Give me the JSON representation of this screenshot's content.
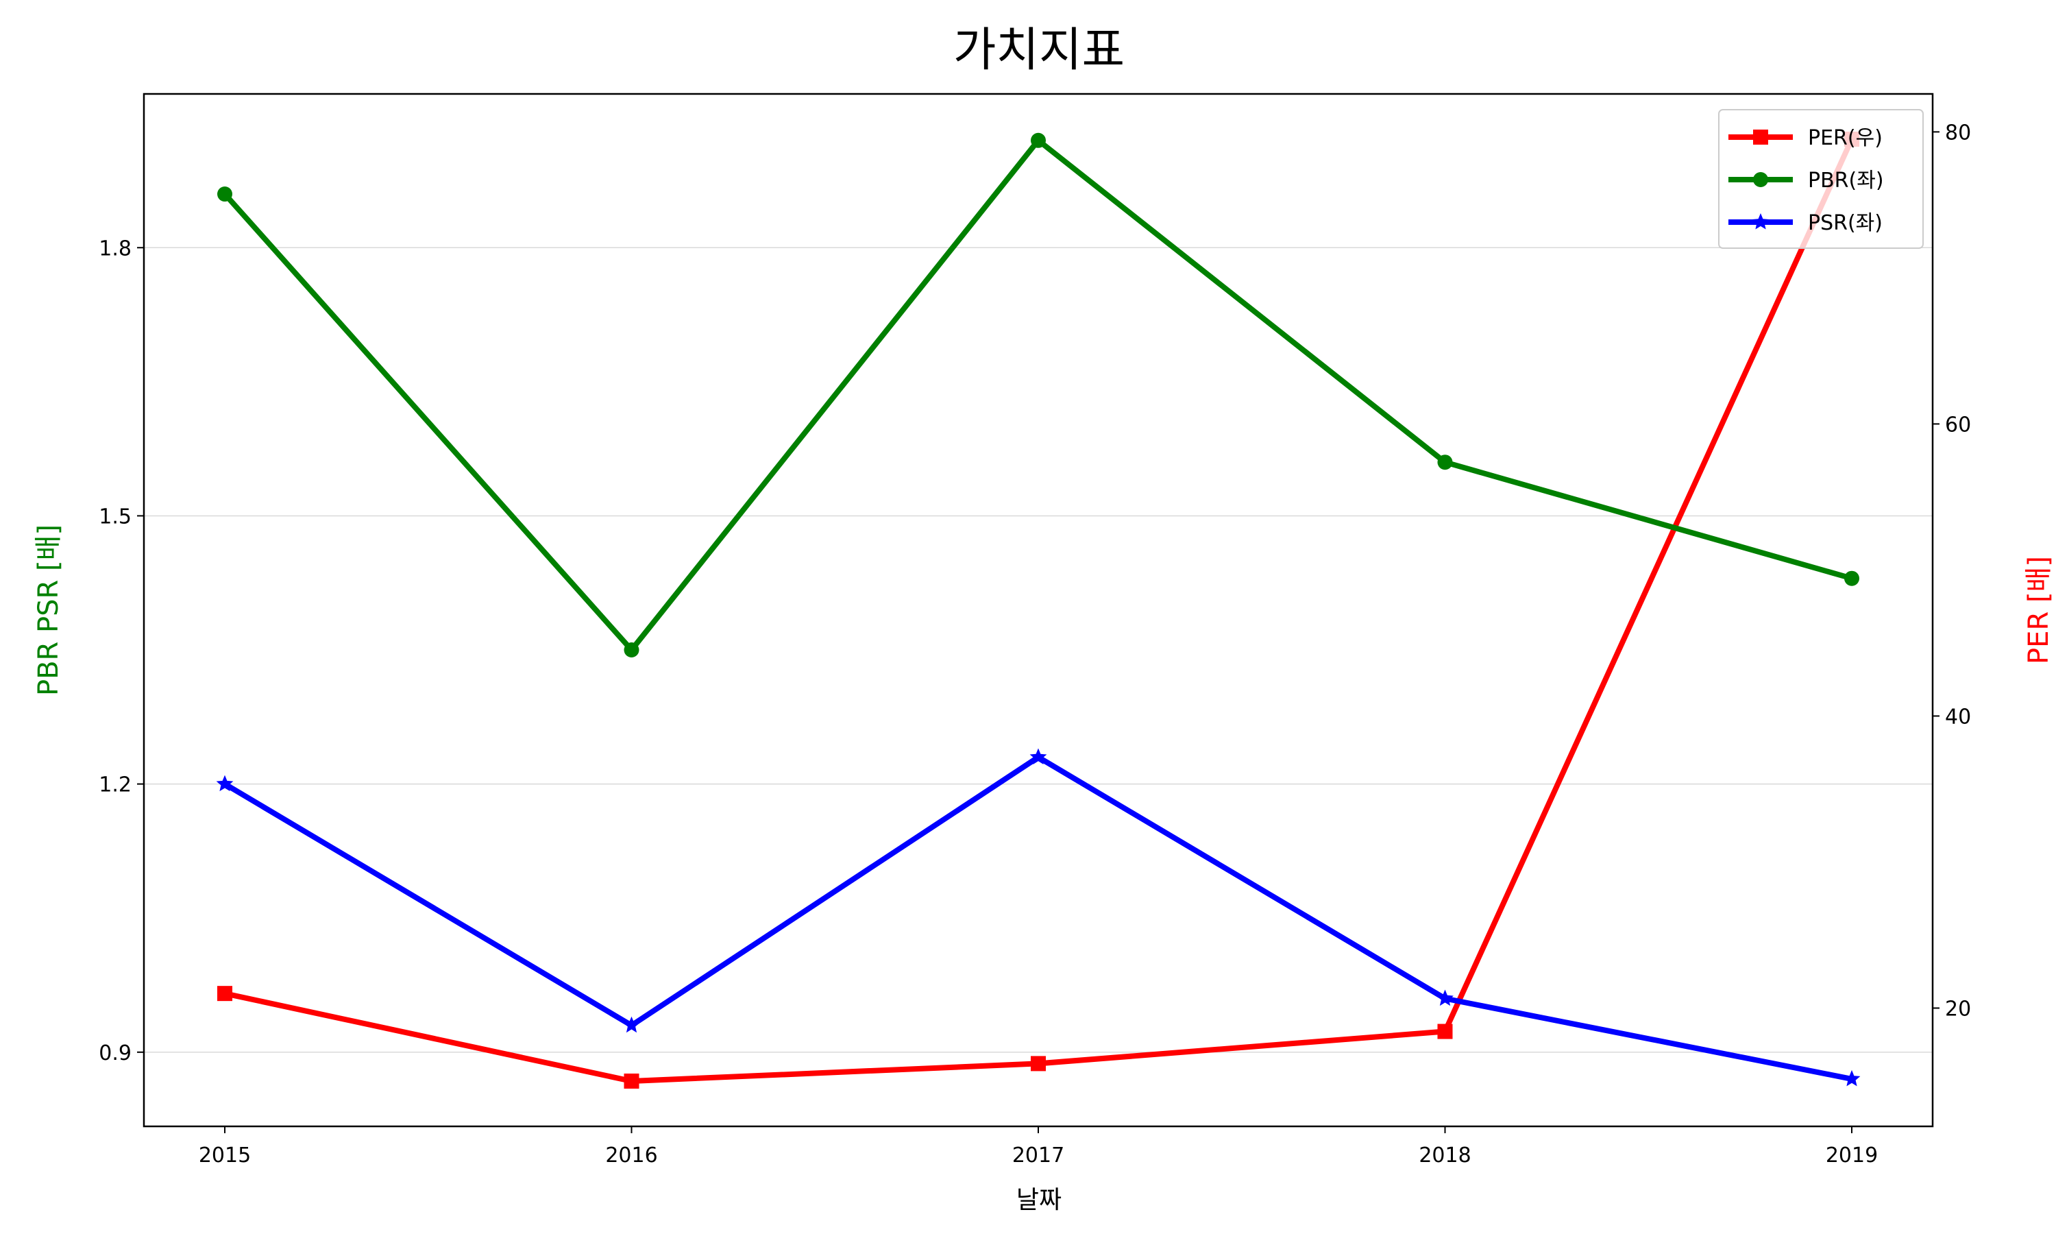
{
  "chart_data": {
    "type": "line",
    "title": "가치지표",
    "xlabel": "날짜",
    "ylabel_left": "PBR PSR [배]",
    "ylabel_right": "PER [배]",
    "x": [
      "2015",
      "2016",
      "2017",
      "2018",
      "2019"
    ],
    "ylim_left": [
      0.817,
      1.972
    ],
    "ylim_right": [
      11.9,
      82.6
    ],
    "yticks_left": [
      0.9,
      1.2,
      1.5,
      1.8
    ],
    "yticks_right": [
      20,
      40,
      60,
      80
    ],
    "grid": "horizontal (left axis)",
    "legend_position": "top-right",
    "series": [
      {
        "name": "PER(우)",
        "axis": "right",
        "color": "#ff0000",
        "marker": "square",
        "values": [
          21.0,
          15.0,
          16.2,
          18.4,
          79.5
        ]
      },
      {
        "name": "PBR(좌)",
        "axis": "left",
        "color": "#008000",
        "marker": "circle",
        "values": [
          1.86,
          1.35,
          1.92,
          1.56,
          1.43
        ]
      },
      {
        "name": "PSR(좌)",
        "axis": "left",
        "color": "#0000ff",
        "marker": "star",
        "values": [
          1.2,
          0.93,
          1.23,
          0.96,
          0.87
        ]
      }
    ]
  }
}
